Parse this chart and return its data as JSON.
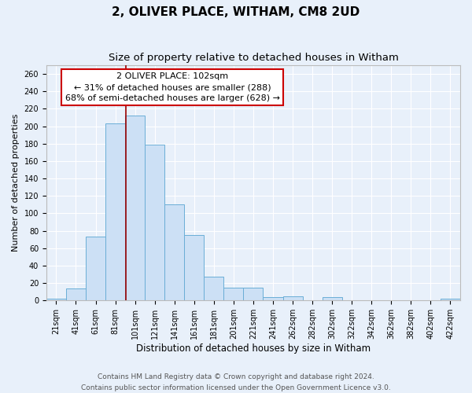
{
  "title": "2, OLIVER PLACE, WITHAM, CM8 2UD",
  "subtitle": "Size of property relative to detached houses in Witham",
  "xlabel": "Distribution of detached houses by size in Witham",
  "ylabel": "Number of detached properties",
  "bar_color": "#cce0f5",
  "bar_edge_color": "#6aaed6",
  "background_color": "#e8f0fa",
  "grid_color": "#ffffff",
  "bins": [
    "21sqm",
    "41sqm",
    "61sqm",
    "81sqm",
    "101sqm",
    "121sqm",
    "141sqm",
    "161sqm",
    "181sqm",
    "201sqm",
    "221sqm",
    "241sqm",
    "262sqm",
    "282sqm",
    "302sqm",
    "322sqm",
    "342sqm",
    "362sqm",
    "382sqm",
    "402sqm",
    "422sqm"
  ],
  "values": [
    2,
    14,
    73,
    203,
    212,
    179,
    110,
    75,
    27,
    15,
    15,
    4,
    5,
    0,
    4,
    0,
    0,
    0,
    0,
    0,
    2
  ],
  "ylim": [
    0,
    270
  ],
  "yticks": [
    0,
    20,
    40,
    60,
    80,
    100,
    120,
    140,
    160,
    180,
    200,
    220,
    240,
    260
  ],
  "property_size": 102,
  "property_bin_index": 4,
  "red_line_color": "#990000",
  "annotation_line1": "2 OLIVER PLACE: 102sqm",
  "annotation_line2": "← 31% of detached houses are smaller (288)",
  "annotation_line3": "68% of semi-detached houses are larger (628) →",
  "annotation_box_color": "#ffffff",
  "annotation_box_edge_color": "#cc0000",
  "footer_line1": "Contains HM Land Registry data © Crown copyright and database right 2024.",
  "footer_line2": "Contains public sector information licensed under the Open Government Licence v3.0.",
  "title_fontsize": 11,
  "subtitle_fontsize": 9.5,
  "xlabel_fontsize": 8.5,
  "ylabel_fontsize": 8,
  "tick_fontsize": 7,
  "annotation_fontsize": 8,
  "footer_fontsize": 6.5
}
